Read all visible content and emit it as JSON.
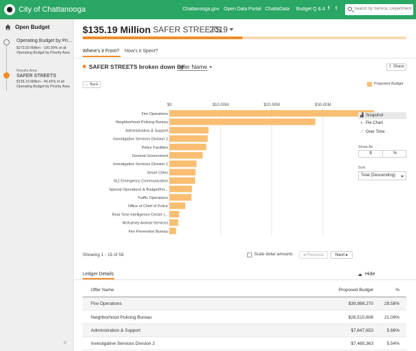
{
  "topbar": {
    "brand": "City of Chattanooga",
    "nav": [
      "Chattanooga.gov",
      "Open Data Portal",
      "ChattaData",
      "Budget Q & A"
    ],
    "social": [
      "f",
      "t"
    ],
    "search_placeholder": "Search by Service, Department",
    "color": "#2aa665"
  },
  "sidebar": {
    "title": "Open Budget",
    "level1": {
      "title": "Operating Budget by Pri...",
      "subtitle": "$273.55 Million - 100.00% of all Operating Budget by Priority Area"
    },
    "level2": {
      "label": "Results Area",
      "title": "SAFER STREETS",
      "subtitle": "$135.19 Million - 49.42% of all Operating Budget by Priority Area"
    },
    "collapse": "«"
  },
  "header": {
    "amount": "$135.19 Million",
    "area": "SAFER STREETS",
    "year": "2019",
    "share_of_total": 0.4942,
    "accent": "#f28c28"
  },
  "tabs": [
    "Where's it From?",
    "How's it Spent?"
  ],
  "breakdown": {
    "text": "SAFER STREETS broken down by",
    "select": "Offer Name",
    "share": "Share"
  },
  "chart_controls": {
    "back": "Back",
    "legend": "Proposed Budget"
  },
  "chart_data": {
    "type": "bar",
    "orientation": "horizontal",
    "series": [
      {
        "name": "Proposed Budget",
        "color": "#f9be72"
      }
    ],
    "xlim": [
      0,
      35000000
    ],
    "x_ticks": [
      {
        "value": 0,
        "label": "$0"
      },
      {
        "value": 10000000,
        "label": "$10.00M"
      },
      {
        "value": 20000000,
        "label": "$20.00M"
      },
      {
        "value": 30000000,
        "label": "$30.00M"
      }
    ],
    "categories": [
      "Fire Operations",
      "Neighborhood Policing Bureau",
      "Administration & Support",
      "Investigative Services Division 2",
      "Police Facilities",
      "General Government",
      "Investigative Services Division 1",
      "Smart Cities",
      "911 Emergency Communication",
      "Special Operations & Budget/Fin...",
      "Traffic Operations",
      "Office of Chief of Police",
      "Real Time Intelligence Center (...",
      "McKamey Animal Services",
      "Fire Prevention Bureau"
    ],
    "values": [
      39988270,
      28510608,
      7647653,
      7485363,
      7200000,
      6500000,
      5300000,
      5100000,
      5000000,
      4400000,
      4300000,
      3100000,
      1900000,
      1700000,
      1300000
    ]
  },
  "right_panel": {
    "views": [
      {
        "icon": "▟",
        "label": "Snapshot",
        "active": true
      },
      {
        "icon": "◐",
        "label": "Pie Chart",
        "active": false
      },
      {
        "icon": "⟋",
        "label": "Over Time",
        "active": false
      }
    ],
    "show_as_label": "Show As",
    "show_as": [
      "$",
      "%"
    ],
    "sort_label": "Sort",
    "sort_value": "Total (Descending)"
  },
  "pager": {
    "showing": "Showing 1 - 15 of 59",
    "scale_label": "Scale dollar amounts",
    "previous": "◂ Previous",
    "next": "Next ▸"
  },
  "ledger": {
    "title": "Ledger Details",
    "hide": "Hide",
    "columns": [
      "Offer Name",
      "Proposed Budget",
      "%"
    ],
    "rows": [
      [
        "Fire Operations",
        "$39,988,270",
        "29.58%"
      ],
      [
        "Neighborhood Policing Bureau",
        "$28,510,608",
        "21.09%"
      ],
      [
        "Administration & Support",
        "$7,647,653",
        "5.66%"
      ],
      [
        "Investigative Services Division 2",
        "$7,485,363",
        "5.54%"
      ]
    ]
  }
}
